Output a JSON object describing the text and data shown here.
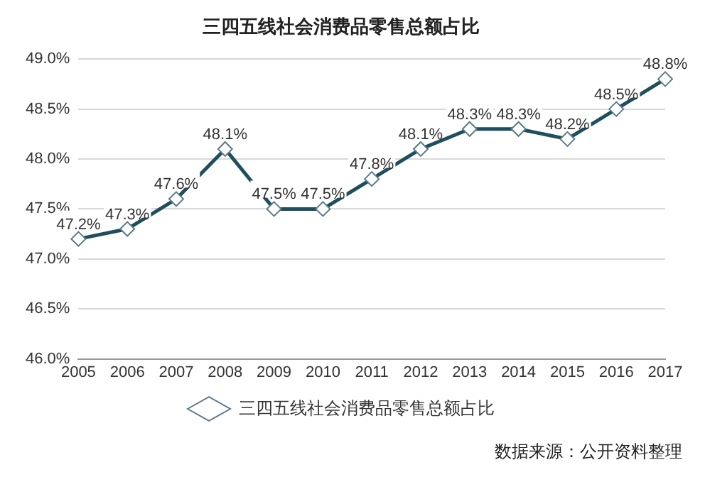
{
  "chart_data": {
    "type": "line",
    "title": "三四五线社会消费品零售总额占比",
    "categories": [
      "2005",
      "2006",
      "2007",
      "2008",
      "2009",
      "2010",
      "2011",
      "2012",
      "2013",
      "2014",
      "2015",
      "2016",
      "2017"
    ],
    "series": [
      {
        "name": "三四五线社会消费品零售总额占比",
        "color": "#1f4e5f",
        "values": [
          47.2,
          47.3,
          47.6,
          48.1,
          47.5,
          47.5,
          47.8,
          48.1,
          48.3,
          48.3,
          48.2,
          48.5,
          48.8
        ],
        "value_labels": [
          "47.2%",
          "47.3%",
          "47.6%",
          "48.1%",
          "47.5%",
          "47.5%",
          "47.8%",
          "48.1%",
          "48.3%",
          "48.3%",
          "48.2%",
          "48.5%",
          "48.8%"
        ]
      }
    ],
    "ylim": [
      46,
      49
    ],
    "yticks": [
      {
        "value": 46,
        "label": "46.0%"
      },
      {
        "value": 46.5,
        "label": "46.5%"
      },
      {
        "value": 47,
        "label": "47.0%"
      },
      {
        "value": 47.5,
        "label": "47.5%"
      },
      {
        "value": 48,
        "label": "48.0%"
      },
      {
        "value": 48.5,
        "label": "48.5%"
      },
      {
        "value": 49,
        "label": "49.0%"
      }
    ],
    "grid": "y",
    "legend": "bottom",
    "marker": "diamond",
    "line_style": "solid",
    "annotations": [
      "数据来源：公开资料整理"
    ]
  }
}
